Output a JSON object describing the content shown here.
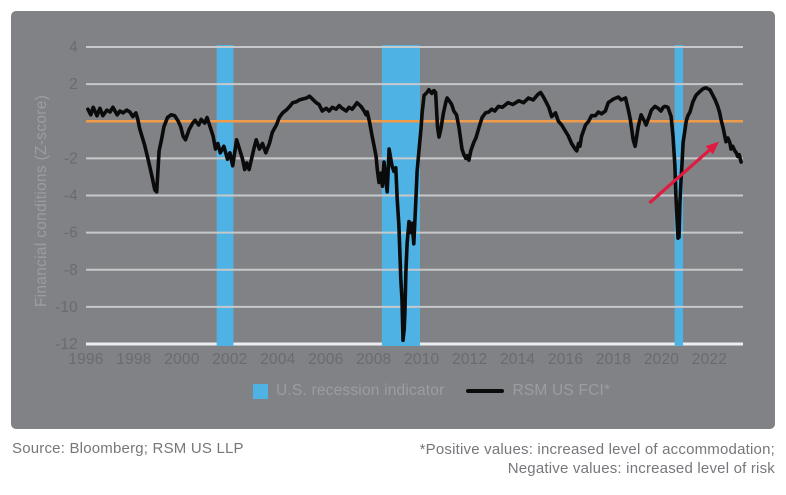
{
  "colors": {
    "panel_bg": "#808285",
    "grid": "#c6c8ca",
    "grid_bottom": "#ecedee",
    "tick_text": "#6a6b6e",
    "muted_text": "#9b9da0",
    "footer_text": "#76777b",
    "recession_blue": "#4fb2e5",
    "zero_orange": "#f09b49",
    "fci_black": "#0b0b0c",
    "arrow_red": "#e11b3f"
  },
  "legend": {
    "recession_label": "U.S. recession indicator",
    "fci_label": "RSM US FCI*"
  },
  "footer": {
    "source": "Source: Bloomberg; RSM US LLP",
    "note_line1": "*Positive values: increased level of accommodation;",
    "note_line2": "Negative values: increased level of risk"
  },
  "chart_data": {
    "type": "line",
    "title": "",
    "xlabel": "",
    "ylabel": "Financial conditions (Z-score)",
    "x_range": [
      1996,
      2023.4
    ],
    "y_range": [
      -12,
      4
    ],
    "x_ticks": [
      1996,
      1998,
      2000,
      2002,
      2004,
      2006,
      2008,
      2010,
      2012,
      2014,
      2016,
      2018,
      2020,
      2022
    ],
    "y_ticks": [
      4,
      2,
      -2,
      -4,
      -6,
      -8,
      -10,
      -12
    ],
    "grid_values": [
      4,
      2,
      0,
      -2,
      -4,
      -6,
      -8,
      -10
    ],
    "zero_line_value": 0,
    "legend_position": "bottom",
    "recession_bands": [
      [
        2001.45,
        2002.15
      ],
      [
        2008.34,
        2009.93
      ],
      [
        2020.55,
        2020.9
      ]
    ],
    "annotation_arrow": {
      "from": [
        2019.5,
        -4.4
      ],
      "to": [
        2022.4,
        -1.1
      ]
    },
    "series": [
      {
        "name": "RSM US FCI*",
        "points": [
          [
            1996.08,
            0.65
          ],
          [
            1996.2,
            0.35
          ],
          [
            1996.3,
            0.75
          ],
          [
            1996.46,
            0.3
          ],
          [
            1996.58,
            0.7
          ],
          [
            1996.7,
            0.3
          ],
          [
            1996.87,
            0.6
          ],
          [
            1997.0,
            0.5
          ],
          [
            1997.12,
            0.75
          ],
          [
            1997.3,
            0.35
          ],
          [
            1997.42,
            0.55
          ],
          [
            1997.54,
            0.45
          ],
          [
            1997.7,
            0.6
          ],
          [
            1997.83,
            0.5
          ],
          [
            1997.95,
            0.25
          ],
          [
            1998.08,
            0.45
          ],
          [
            1998.16,
            0.1
          ],
          [
            1998.24,
            -0.4
          ],
          [
            1998.45,
            -1.3
          ],
          [
            1998.58,
            -2.0
          ],
          [
            1998.74,
            -2.9
          ],
          [
            1998.87,
            -3.7
          ],
          [
            1998.95,
            -3.8
          ],
          [
            1999.05,
            -1.6
          ],
          [
            1999.15,
            -1.0
          ],
          [
            1999.25,
            -0.3
          ],
          [
            1999.4,
            0.2
          ],
          [
            1999.55,
            0.35
          ],
          [
            1999.7,
            0.3
          ],
          [
            1999.85,
            0.0
          ],
          [
            1999.95,
            -0.3
          ],
          [
            2000.05,
            -0.8
          ],
          [
            2000.15,
            -1.0
          ],
          [
            2000.3,
            -0.45
          ],
          [
            2000.45,
            -0.1
          ],
          [
            2000.55,
            0.05
          ],
          [
            2000.7,
            -0.2
          ],
          [
            2000.8,
            0.1
          ],
          [
            2000.95,
            -0.1
          ],
          [
            2001.05,
            0.2
          ],
          [
            2001.15,
            -0.2
          ],
          [
            2001.3,
            -0.8
          ],
          [
            2001.4,
            -1.5
          ],
          [
            2001.5,
            -1.2
          ],
          [
            2001.6,
            -1.7
          ],
          [
            2001.75,
            -1.35
          ],
          [
            2001.9,
            -2.05
          ],
          [
            2002.0,
            -1.7
          ],
          [
            2002.12,
            -2.4
          ],
          [
            2002.28,
            -1.0
          ],
          [
            2002.4,
            -1.5
          ],
          [
            2002.53,
            -2.05
          ],
          [
            2002.62,
            -2.6
          ],
          [
            2002.7,
            -2.25
          ],
          [
            2002.8,
            -2.6
          ],
          [
            2003.0,
            -1.5
          ],
          [
            2003.1,
            -1.0
          ],
          [
            2003.23,
            -1.5
          ],
          [
            2003.36,
            -1.2
          ],
          [
            2003.5,
            -1.7
          ],
          [
            2003.65,
            -1.2
          ],
          [
            2003.77,
            -0.6
          ],
          [
            2003.94,
            -0.2
          ],
          [
            2004.06,
            0.2
          ],
          [
            2004.2,
            0.45
          ],
          [
            2004.35,
            0.6
          ],
          [
            2004.5,
            0.8
          ],
          [
            2004.62,
            1.0
          ],
          [
            2004.77,
            1.05
          ],
          [
            2004.9,
            1.15
          ],
          [
            2005.2,
            1.25
          ],
          [
            2005.32,
            1.35
          ],
          [
            2005.6,
            1.0
          ],
          [
            2005.72,
            0.9
          ],
          [
            2005.85,
            0.55
          ],
          [
            2006.02,
            0.7
          ],
          [
            2006.14,
            0.55
          ],
          [
            2006.27,
            0.75
          ],
          [
            2006.43,
            0.65
          ],
          [
            2006.56,
            0.85
          ],
          [
            2006.68,
            0.7
          ],
          [
            2006.85,
            0.55
          ],
          [
            2006.97,
            0.75
          ],
          [
            2007.1,
            0.65
          ],
          [
            2007.22,
            0.85
          ],
          [
            2007.3,
            1.0
          ],
          [
            2007.47,
            0.8
          ],
          [
            2007.6,
            0.55
          ],
          [
            2007.68,
            0.35
          ],
          [
            2007.73,
            0.5
          ],
          [
            2007.82,
            0.0
          ],
          [
            2007.93,
            -0.8
          ],
          [
            2008.01,
            -1.3
          ],
          [
            2008.1,
            -1.9
          ],
          [
            2008.15,
            -2.6
          ],
          [
            2008.22,
            -3.3
          ],
          [
            2008.3,
            -2.8
          ],
          [
            2008.36,
            -3.5
          ],
          [
            2008.43,
            -2.2
          ],
          [
            2008.5,
            -3.1
          ],
          [
            2008.56,
            -3.8
          ],
          [
            2008.64,
            -1.5
          ],
          [
            2008.76,
            -2.4
          ],
          [
            2008.84,
            -2.7
          ],
          [
            2008.92,
            -2.5
          ],
          [
            2008.98,
            -4.2
          ],
          [
            2009.05,
            -5.6
          ],
          [
            2009.13,
            -8.5
          ],
          [
            2009.18,
            -9.6
          ],
          [
            2009.22,
            -11.8
          ],
          [
            2009.27,
            -11.2
          ],
          [
            2009.3,
            -10.3
          ],
          [
            2009.34,
            -8.1
          ],
          [
            2009.39,
            -6.6
          ],
          [
            2009.47,
            -5.4
          ],
          [
            2009.55,
            -6.0
          ],
          [
            2009.6,
            -5.5
          ],
          [
            2009.67,
            -6.6
          ],
          [
            2009.76,
            -4.2
          ],
          [
            2009.81,
            -2.7
          ],
          [
            2009.89,
            -1.5
          ],
          [
            2009.97,
            -0.4
          ],
          [
            2010.02,
            0.5
          ],
          [
            2010.1,
            1.4
          ],
          [
            2010.22,
            1.55
          ],
          [
            2010.3,
            1.7
          ],
          [
            2010.42,
            1.5
          ],
          [
            2010.51,
            1.65
          ],
          [
            2010.58,
            1.55
          ],
          [
            2010.66,
            -0.3
          ],
          [
            2010.72,
            -0.85
          ],
          [
            2010.8,
            -0.4
          ],
          [
            2010.9,
            0.4
          ],
          [
            2011.0,
            1.0
          ],
          [
            2011.06,
            1.25
          ],
          [
            2011.15,
            1.1
          ],
          [
            2011.25,
            0.9
          ],
          [
            2011.34,
            0.55
          ],
          [
            2011.45,
            0.35
          ],
          [
            2011.55,
            -0.3
          ],
          [
            2011.68,
            -1.5
          ],
          [
            2011.76,
            -1.8
          ],
          [
            2011.84,
            -2.0
          ],
          [
            2011.9,
            -1.85
          ],
          [
            2011.97,
            -2.1
          ],
          [
            2012.05,
            -1.6
          ],
          [
            2012.17,
            -1.15
          ],
          [
            2012.26,
            -0.9
          ],
          [
            2012.32,
            -0.65
          ],
          [
            2012.4,
            -0.3
          ],
          [
            2012.52,
            0.2
          ],
          [
            2012.66,
            0.45
          ],
          [
            2012.8,
            0.5
          ],
          [
            2012.92,
            0.65
          ],
          [
            2013.05,
            0.55
          ],
          [
            2013.2,
            0.8
          ],
          [
            2013.36,
            0.75
          ],
          [
            2013.6,
            1.0
          ],
          [
            2013.8,
            0.9
          ],
          [
            2014.05,
            1.1
          ],
          [
            2014.25,
            1.0
          ],
          [
            2014.45,
            1.25
          ],
          [
            2014.65,
            1.15
          ],
          [
            2014.85,
            1.45
          ],
          [
            2014.96,
            1.55
          ],
          [
            2015.08,
            1.3
          ],
          [
            2015.3,
            0.75
          ],
          [
            2015.42,
            0.25
          ],
          [
            2015.58,
            0.45
          ],
          [
            2015.7,
            0.0
          ],
          [
            2015.84,
            -0.2
          ],
          [
            2016.0,
            -0.55
          ],
          [
            2016.12,
            -0.8
          ],
          [
            2016.25,
            -1.2
          ],
          [
            2016.4,
            -1.5
          ],
          [
            2016.47,
            -1.6
          ],
          [
            2016.54,
            -1.2
          ],
          [
            2016.6,
            -1.35
          ],
          [
            2016.67,
            -0.8
          ],
          [
            2016.83,
            -0.2
          ],
          [
            2016.96,
            0.0
          ],
          [
            2017.08,
            0.3
          ],
          [
            2017.24,
            0.3
          ],
          [
            2017.37,
            0.5
          ],
          [
            2017.5,
            0.4
          ],
          [
            2017.66,
            0.55
          ],
          [
            2017.78,
            1.0
          ],
          [
            2018.0,
            1.2
          ],
          [
            2018.2,
            1.3
          ],
          [
            2018.32,
            1.15
          ],
          [
            2018.5,
            1.25
          ],
          [
            2018.62,
            0.6
          ],
          [
            2018.7,
            0.1
          ],
          [
            2018.82,
            -1.0
          ],
          [
            2018.9,
            -1.35
          ],
          [
            2019.03,
            -0.3
          ],
          [
            2019.15,
            0.35
          ],
          [
            2019.25,
            0.1
          ],
          [
            2019.36,
            -0.2
          ],
          [
            2019.5,
            0.3
          ],
          [
            2019.58,
            0.6
          ],
          [
            2019.73,
            0.8
          ],
          [
            2019.86,
            0.7
          ],
          [
            2019.98,
            0.55
          ],
          [
            2020.07,
            0.75
          ],
          [
            2020.15,
            0.8
          ],
          [
            2020.27,
            0.75
          ],
          [
            2020.4,
            0.25
          ],
          [
            2020.48,
            -0.8
          ],
          [
            2020.56,
            -2.4
          ],
          [
            2020.6,
            -4.0
          ],
          [
            2020.65,
            -5.3
          ],
          [
            2020.69,
            -6.3
          ],
          [
            2020.73,
            -6.25
          ],
          [
            2020.77,
            -4.4
          ],
          [
            2020.82,
            -3.1
          ],
          [
            2020.86,
            -2.2
          ],
          [
            2020.9,
            -1.15
          ],
          [
            2020.98,
            -0.45
          ],
          [
            2021.03,
            0.0
          ],
          [
            2021.1,
            0.3
          ],
          [
            2021.19,
            0.5
          ],
          [
            2021.31,
            1.05
          ],
          [
            2021.44,
            1.4
          ],
          [
            2021.6,
            1.6
          ],
          [
            2021.73,
            1.75
          ],
          [
            2021.85,
            1.8
          ],
          [
            2022.02,
            1.7
          ],
          [
            2022.14,
            1.4
          ],
          [
            2022.24,
            1.15
          ],
          [
            2022.35,
            0.8
          ],
          [
            2022.43,
            0.45
          ],
          [
            2022.5,
            0.0
          ],
          [
            2022.57,
            -0.35
          ],
          [
            2022.64,
            -0.8
          ],
          [
            2022.69,
            -1.1
          ],
          [
            2022.77,
            -0.9
          ],
          [
            2022.85,
            -1.15
          ],
          [
            2022.9,
            -1.5
          ],
          [
            2022.97,
            -1.35
          ],
          [
            2023.06,
            -1.6
          ],
          [
            2023.12,
            -1.7
          ],
          [
            2023.18,
            -1.9
          ],
          [
            2023.24,
            -1.8
          ],
          [
            2023.32,
            -2.2
          ]
        ]
      }
    ]
  }
}
